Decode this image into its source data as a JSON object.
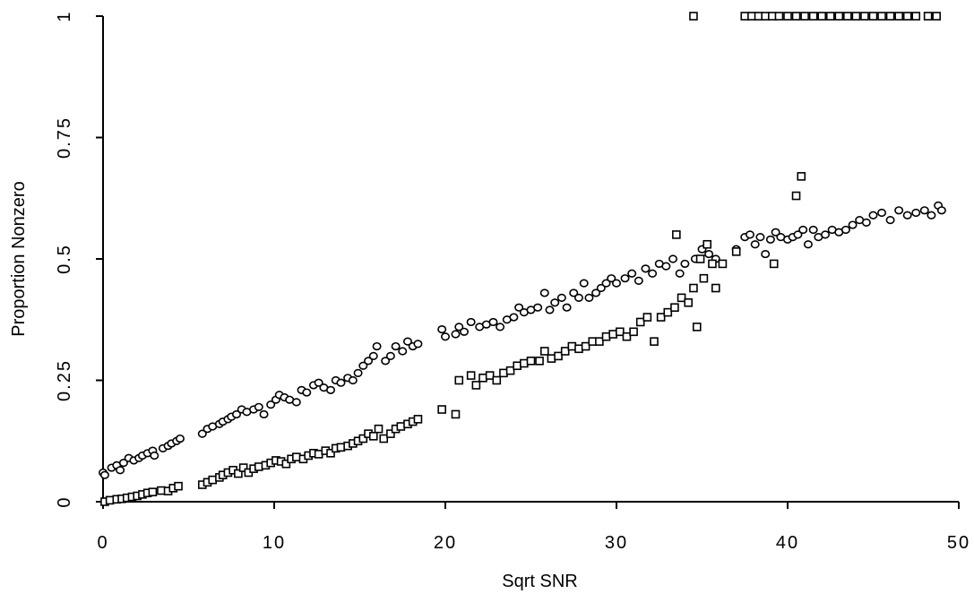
{
  "chart_data": {
    "type": "scatter",
    "xlabel": "Sqrt SNR",
    "ylabel": "Proportion Nonzero",
    "xlim": [
      0,
      50
    ],
    "ylim": [
      0,
      1
    ],
    "xticks": [
      0,
      10,
      20,
      30,
      40,
      50
    ],
    "yticks": [
      0,
      0.25,
      0.5,
      0.75,
      1
    ],
    "xtick_labels": [
      "0",
      "10",
      "20",
      "30",
      "40",
      "50"
    ],
    "ytick_labels": [
      "0",
      "0.25",
      "0.5",
      "0.75",
      "1"
    ],
    "grid": false,
    "legend": "none",
    "series": [
      {
        "marker": "circle",
        "points": [
          [
            0.0,
            0.06
          ],
          [
            0.1,
            0.055
          ],
          [
            0.5,
            0.07
          ],
          [
            0.8,
            0.075
          ],
          [
            1.0,
            0.065
          ],
          [
            1.2,
            0.08
          ],
          [
            1.5,
            0.09
          ],
          [
            1.8,
            0.085
          ],
          [
            2.1,
            0.09
          ],
          [
            2.3,
            0.095
          ],
          [
            2.6,
            0.1
          ],
          [
            2.9,
            0.105
          ],
          [
            3.0,
            0.095
          ],
          [
            3.5,
            0.11
          ],
          [
            3.8,
            0.115
          ],
          [
            4.0,
            0.12
          ],
          [
            4.3,
            0.125
          ],
          [
            4.5,
            0.13
          ],
          [
            5.8,
            0.14
          ],
          [
            6.1,
            0.15
          ],
          [
            6.4,
            0.155
          ],
          [
            6.8,
            0.16
          ],
          [
            7.0,
            0.165
          ],
          [
            7.3,
            0.17
          ],
          [
            7.5,
            0.175
          ],
          [
            7.8,
            0.18
          ],
          [
            8.1,
            0.19
          ],
          [
            8.4,
            0.185
          ],
          [
            8.8,
            0.19
          ],
          [
            9.1,
            0.195
          ],
          [
            9.4,
            0.18
          ],
          [
            9.8,
            0.2
          ],
          [
            10.1,
            0.21
          ],
          [
            10.3,
            0.22
          ],
          [
            10.6,
            0.215
          ],
          [
            10.9,
            0.21
          ],
          [
            11.3,
            0.205
          ],
          [
            11.6,
            0.23
          ],
          [
            11.9,
            0.225
          ],
          [
            12.3,
            0.24
          ],
          [
            12.6,
            0.245
          ],
          [
            12.9,
            0.235
          ],
          [
            13.3,
            0.23
          ],
          [
            13.6,
            0.25
          ],
          [
            13.9,
            0.245
          ],
          [
            14.3,
            0.255
          ],
          [
            14.6,
            0.25
          ],
          [
            14.9,
            0.265
          ],
          [
            15.2,
            0.28
          ],
          [
            15.5,
            0.29
          ],
          [
            15.8,
            0.3
          ],
          [
            16.0,
            0.32
          ],
          [
            16.5,
            0.29
          ],
          [
            16.8,
            0.3
          ],
          [
            17.1,
            0.32
          ],
          [
            17.5,
            0.31
          ],
          [
            17.8,
            0.33
          ],
          [
            18.1,
            0.32
          ],
          [
            18.4,
            0.325
          ],
          [
            19.8,
            0.355
          ],
          [
            20.0,
            0.34
          ],
          [
            20.6,
            0.345
          ],
          [
            20.8,
            0.36
          ],
          [
            21.1,
            0.35
          ],
          [
            21.5,
            0.37
          ],
          [
            22.0,
            0.36
          ],
          [
            22.4,
            0.365
          ],
          [
            22.8,
            0.37
          ],
          [
            23.2,
            0.36
          ],
          [
            23.6,
            0.375
          ],
          [
            24.0,
            0.38
          ],
          [
            24.3,
            0.4
          ],
          [
            24.6,
            0.39
          ],
          [
            25.0,
            0.395
          ],
          [
            25.4,
            0.4
          ],
          [
            25.8,
            0.43
          ],
          [
            26.1,
            0.395
          ],
          [
            26.4,
            0.41
          ],
          [
            26.8,
            0.42
          ],
          [
            27.1,
            0.4
          ],
          [
            27.5,
            0.43
          ],
          [
            27.8,
            0.42
          ],
          [
            28.1,
            0.45
          ],
          [
            28.4,
            0.42
          ],
          [
            28.8,
            0.43
          ],
          [
            29.1,
            0.44
          ],
          [
            29.4,
            0.45
          ],
          [
            29.7,
            0.46
          ],
          [
            30.0,
            0.45
          ],
          [
            30.5,
            0.46
          ],
          [
            30.9,
            0.47
          ],
          [
            31.3,
            0.455
          ],
          [
            31.7,
            0.48
          ],
          [
            32.1,
            0.47
          ],
          [
            32.5,
            0.49
          ],
          [
            32.9,
            0.485
          ],
          [
            33.3,
            0.5
          ],
          [
            33.7,
            0.47
          ],
          [
            34.0,
            0.49
          ],
          [
            34.6,
            0.5
          ],
          [
            35.0,
            0.52
          ],
          [
            35.4,
            0.51
          ],
          [
            35.8,
            0.5
          ],
          [
            37.0,
            0.52
          ],
          [
            37.5,
            0.545
          ],
          [
            37.8,
            0.55
          ],
          [
            38.1,
            0.53
          ],
          [
            38.4,
            0.545
          ],
          [
            38.7,
            0.51
          ],
          [
            39.0,
            0.54
          ],
          [
            39.3,
            0.555
          ],
          [
            39.6,
            0.545
          ],
          [
            40.0,
            0.54
          ],
          [
            40.3,
            0.545
          ],
          [
            40.6,
            0.55
          ],
          [
            40.9,
            0.56
          ],
          [
            41.2,
            0.53
          ],
          [
            41.5,
            0.56
          ],
          [
            41.8,
            0.545
          ],
          [
            42.2,
            0.55
          ],
          [
            42.6,
            0.56
          ],
          [
            43.0,
            0.555
          ],
          [
            43.4,
            0.56
          ],
          [
            43.8,
            0.57
          ],
          [
            44.2,
            0.58
          ],
          [
            44.6,
            0.575
          ],
          [
            45.0,
            0.59
          ],
          [
            45.5,
            0.595
          ],
          [
            46.0,
            0.58
          ],
          [
            46.5,
            0.6
          ],
          [
            47.0,
            0.59
          ],
          [
            47.5,
            0.595
          ],
          [
            48.0,
            0.6
          ],
          [
            48.4,
            0.59
          ],
          [
            48.8,
            0.61
          ],
          [
            49.0,
            0.6
          ]
        ]
      },
      {
        "marker": "square",
        "points": [
          [
            0.1,
            0.0
          ],
          [
            0.4,
            0.003
          ],
          [
            0.8,
            0.005
          ],
          [
            1.1,
            0.006
          ],
          [
            1.4,
            0.008
          ],
          [
            1.7,
            0.01
          ],
          [
            2.0,
            0.012
          ],
          [
            2.3,
            0.015
          ],
          [
            2.6,
            0.018
          ],
          [
            2.9,
            0.02
          ],
          [
            3.4,
            0.023
          ],
          [
            3.8,
            0.022
          ],
          [
            4.1,
            0.028
          ],
          [
            4.4,
            0.032
          ],
          [
            5.8,
            0.035
          ],
          [
            6.1,
            0.04
          ],
          [
            6.4,
            0.045
          ],
          [
            6.8,
            0.05
          ],
          [
            7.0,
            0.055
          ],
          [
            7.3,
            0.06
          ],
          [
            7.6,
            0.065
          ],
          [
            7.9,
            0.058
          ],
          [
            8.2,
            0.07
          ],
          [
            8.5,
            0.06
          ],
          [
            8.8,
            0.068
          ],
          [
            9.1,
            0.072
          ],
          [
            9.5,
            0.075
          ],
          [
            9.8,
            0.08
          ],
          [
            10.1,
            0.085
          ],
          [
            10.4,
            0.083
          ],
          [
            10.7,
            0.078
          ],
          [
            11.0,
            0.088
          ],
          [
            11.3,
            0.092
          ],
          [
            11.7,
            0.088
          ],
          [
            12.0,
            0.095
          ],
          [
            12.3,
            0.1
          ],
          [
            12.6,
            0.098
          ],
          [
            13.0,
            0.105
          ],
          [
            13.3,
            0.1
          ],
          [
            13.6,
            0.11
          ],
          [
            13.9,
            0.112
          ],
          [
            14.3,
            0.115
          ],
          [
            14.6,
            0.12
          ],
          [
            14.9,
            0.125
          ],
          [
            15.2,
            0.13
          ],
          [
            15.5,
            0.14
          ],
          [
            15.8,
            0.135
          ],
          [
            16.1,
            0.15
          ],
          [
            16.4,
            0.13
          ],
          [
            16.8,
            0.14
          ],
          [
            17.1,
            0.15
          ],
          [
            17.4,
            0.155
          ],
          [
            17.8,
            0.16
          ],
          [
            18.1,
            0.165
          ],
          [
            18.4,
            0.17
          ],
          [
            19.8,
            0.19
          ],
          [
            20.6,
            0.18
          ],
          [
            20.8,
            0.25
          ],
          [
            21.5,
            0.26
          ],
          [
            21.8,
            0.24
          ],
          [
            22.2,
            0.255
          ],
          [
            22.6,
            0.26
          ],
          [
            23.0,
            0.25
          ],
          [
            23.4,
            0.265
          ],
          [
            23.8,
            0.27
          ],
          [
            24.2,
            0.28
          ],
          [
            24.6,
            0.285
          ],
          [
            25.0,
            0.29
          ],
          [
            25.5,
            0.29
          ],
          [
            25.8,
            0.31
          ],
          [
            26.2,
            0.295
          ],
          [
            26.6,
            0.3
          ],
          [
            27.0,
            0.31
          ],
          [
            27.4,
            0.32
          ],
          [
            27.8,
            0.315
          ],
          [
            28.2,
            0.32
          ],
          [
            28.6,
            0.33
          ],
          [
            29.0,
            0.33
          ],
          [
            29.4,
            0.34
          ],
          [
            29.8,
            0.345
          ],
          [
            30.2,
            0.35
          ],
          [
            30.6,
            0.34
          ],
          [
            31.0,
            0.35
          ],
          [
            31.4,
            0.37
          ],
          [
            31.8,
            0.38
          ],
          [
            32.2,
            0.33
          ],
          [
            32.6,
            0.38
          ],
          [
            33.0,
            0.39
          ],
          [
            33.4,
            0.4
          ],
          [
            33.8,
            0.42
          ],
          [
            34.2,
            0.41
          ],
          [
            34.5,
            0.44
          ],
          [
            34.7,
            0.36
          ],
          [
            34.9,
            0.5
          ],
          [
            35.1,
            0.46
          ],
          [
            35.3,
            0.53
          ],
          [
            35.6,
            0.49
          ],
          [
            35.8,
            0.44
          ],
          [
            33.5,
            0.55
          ],
          [
            36.2,
            0.49
          ],
          [
            37.0,
            0.515
          ],
          [
            39.2,
            0.49
          ],
          [
            40.5,
            0.63
          ],
          [
            40.8,
            0.67
          ],
          [
            34.5,
            1.0
          ],
          [
            37.5,
            1.0
          ],
          [
            37.9,
            1.0
          ],
          [
            38.3,
            1.0
          ],
          [
            38.7,
            1.0
          ],
          [
            39.1,
            1.0
          ],
          [
            39.5,
            1.0
          ],
          [
            40.0,
            1.0
          ],
          [
            40.5,
            1.0
          ],
          [
            41.0,
            1.0
          ],
          [
            41.5,
            1.0
          ],
          [
            42.0,
            1.0
          ],
          [
            42.5,
            1.0
          ],
          [
            43.0,
            1.0
          ],
          [
            43.5,
            1.0
          ],
          [
            44.0,
            1.0
          ],
          [
            44.5,
            1.0
          ],
          [
            45.0,
            1.0
          ],
          [
            45.5,
            1.0
          ],
          [
            46.0,
            1.0
          ],
          [
            46.5,
            1.0
          ],
          [
            47.0,
            1.0
          ],
          [
            47.5,
            1.0
          ],
          [
            48.2,
            1.0
          ],
          [
            48.7,
            1.0
          ]
        ]
      }
    ]
  }
}
